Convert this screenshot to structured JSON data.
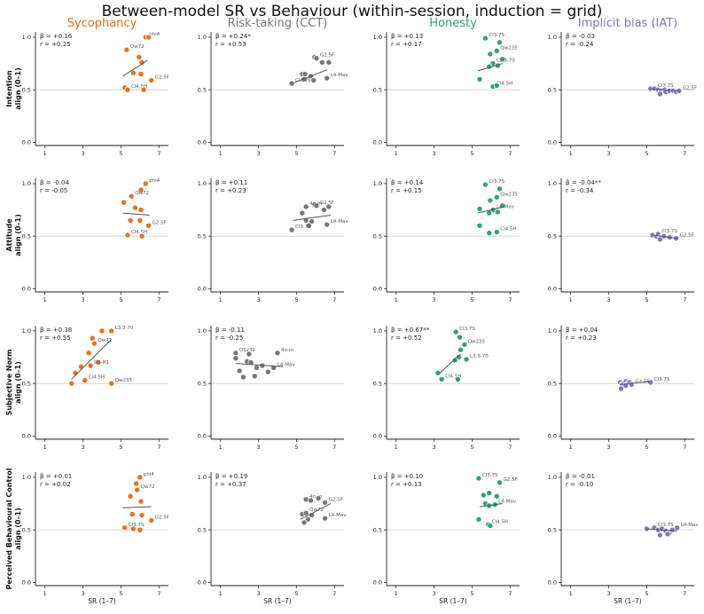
{
  "title": "Between-model SR vs Behaviour (within-session, induction = grid)",
  "xlabel": "SR (1–7)",
  "columns": [
    {
      "name": "Sycophancy",
      "color": "#E8711C"
    },
    {
      "name": "Risk-taking (CCT)",
      "color": "#777777"
    },
    {
      "name": "Honesty",
      "color": "#2BA37A"
    },
    {
      "name": "Implicit bias (IAT)",
      "color": "#7F78BE"
    }
  ],
  "rows": [
    {
      "ylabel_line1": "Intention",
      "ylabel_line2": "align (0–1)"
    },
    {
      "ylabel_line1": "Attitude",
      "ylabel_line2": "align (0–1)"
    },
    {
      "ylabel_line1": "Subjective Norm",
      "ylabel_line2": "align (0–1)"
    },
    {
      "ylabel_line1": "Perceived Behavioural Control",
      "ylabel_line2": "align (0–1)"
    }
  ],
  "chart_data": {
    "type": "scatter",
    "xlim": [
      0.5,
      7.5
    ],
    "ylim": [
      -0.03,
      1.05
    ],
    "x_ticks": [
      1,
      3,
      5,
      7
    ],
    "y_ticks": [
      "0.0",
      "0.5",
      "1.0"
    ],
    "reference_line_y": 0.5,
    "panels": [
      {
        "row": 0,
        "col": 0,
        "beta": "β = +0.16",
        "r": "r = +0.25",
        "fit": [
          [
            5.1,
            0.63
          ],
          [
            6.4,
            0.78
          ]
        ],
        "points": [
          [
            6.3,
            1.0,
            "phi4"
          ],
          [
            6.45,
            1.0,
            ""
          ],
          [
            5.3,
            0.88,
            "Qw72"
          ],
          [
            5.95,
            0.81,
            ""
          ],
          [
            6.1,
            0.76,
            ""
          ],
          [
            5.65,
            0.66,
            ""
          ],
          [
            6.05,
            0.65,
            ""
          ],
          [
            6.6,
            0.59,
            "G2.5F"
          ],
          [
            5.2,
            0.52,
            ""
          ],
          [
            5.35,
            0.5,
            "Cl4.5H"
          ],
          [
            6.2,
            0.5,
            ""
          ]
        ]
      },
      {
        "row": 0,
        "col": 1,
        "beta": "β = +0.24*",
        "r": "r = +0.53",
        "fit": [
          [
            4.9,
            0.57
          ],
          [
            6.6,
            0.69
          ]
        ],
        "points": [
          [
            5.95,
            0.81,
            ""
          ],
          [
            6.05,
            0.8,
            "G2.5F"
          ],
          [
            6.35,
            0.76,
            ""
          ],
          [
            6.7,
            0.76,
            ""
          ],
          [
            5.3,
            0.65,
            ""
          ],
          [
            5.45,
            0.65,
            ""
          ],
          [
            5.75,
            0.63,
            ""
          ],
          [
            6.6,
            0.61,
            "L4-Mav"
          ],
          [
            5.4,
            0.6,
            ""
          ],
          [
            5.9,
            0.59,
            ""
          ],
          [
            4.75,
            0.56,
            "Cl3.7S"
          ]
        ]
      },
      {
        "row": 0,
        "col": 2,
        "beta": "β = +0.13",
        "r": "r = +0.17",
        "fit": [
          [
            5.3,
            0.68
          ],
          [
            6.6,
            0.75
          ]
        ],
        "points": [
          [
            5.7,
            0.99,
            "Cl3.7S"
          ],
          [
            6.45,
            0.95,
            ""
          ],
          [
            6.3,
            0.87,
            "Qw235"
          ],
          [
            5.95,
            0.84,
            ""
          ],
          [
            6.6,
            0.79,
            ""
          ],
          [
            6.1,
            0.75,
            "L3.3-70"
          ],
          [
            6.35,
            0.73,
            ""
          ],
          [
            5.9,
            0.72,
            ""
          ],
          [
            5.4,
            0.6,
            ""
          ],
          [
            6.1,
            0.53,
            "Cl4.5H"
          ],
          [
            6.3,
            0.54,
            ""
          ]
        ]
      },
      {
        "row": 0,
        "col": 3,
        "beta": "β = -0.03",
        "r": "r = -0.24",
        "fit": [
          [
            5.2,
            0.51
          ],
          [
            6.7,
            0.49
          ]
        ],
        "points": [
          [
            5.2,
            0.51,
            ""
          ],
          [
            5.4,
            0.51,
            "Cl3.7S"
          ],
          [
            5.6,
            0.5,
            ""
          ],
          [
            5.75,
            0.49,
            ""
          ],
          [
            5.95,
            0.5,
            ""
          ],
          [
            5.7,
            0.46,
            ""
          ],
          [
            6.0,
            0.48,
            ""
          ],
          [
            6.2,
            0.49,
            ""
          ],
          [
            6.4,
            0.49,
            ""
          ],
          [
            6.55,
            0.48,
            ""
          ],
          [
            6.7,
            0.49,
            "G2.5F"
          ]
        ]
      },
      {
        "row": 1,
        "col": 0,
        "beta": "β = -0.04",
        "r": "r = -0.05",
        "fit": [
          [
            5.1,
            0.72
          ],
          [
            6.5,
            0.7
          ]
        ],
        "points": [
          [
            6.3,
            1.0,
            "phi4"
          ],
          [
            6.05,
            0.94,
            ""
          ],
          [
            5.55,
            0.88,
            "Qw72"
          ],
          [
            5.15,
            0.82,
            ""
          ],
          [
            5.75,
            0.77,
            ""
          ],
          [
            6.05,
            0.75,
            ""
          ],
          [
            5.5,
            0.65,
            ""
          ],
          [
            6.0,
            0.65,
            ""
          ],
          [
            6.45,
            0.6,
            "G2.5F"
          ],
          [
            5.35,
            0.51,
            "Cl4.5H"
          ],
          [
            6.1,
            0.5,
            ""
          ]
        ]
      },
      {
        "row": 1,
        "col": 1,
        "beta": "β = +0.11",
        "r": "r = +0.23",
        "fit": [
          [
            4.8,
            0.65
          ],
          [
            6.8,
            0.7
          ]
        ],
        "points": [
          [
            5.95,
            0.8,
            ""
          ],
          [
            6.05,
            0.79,
            "G2.5F"
          ],
          [
            5.5,
            0.78,
            "4o-m"
          ],
          [
            6.45,
            0.75,
            ""
          ],
          [
            6.7,
            0.78,
            ""
          ],
          [
            5.3,
            0.72,
            ""
          ],
          [
            5.5,
            0.65,
            ""
          ],
          [
            5.8,
            0.64,
            ""
          ],
          [
            6.6,
            0.61,
            "L4-Mav"
          ],
          [
            5.65,
            0.6,
            ""
          ],
          [
            4.75,
            0.56,
            "Cl3.7S"
          ]
        ]
      },
      {
        "row": 1,
        "col": 2,
        "beta": "β = +0.14",
        "r": "r = +0.15",
        "fit": [
          [
            5.3,
            0.72
          ],
          [
            6.7,
            0.78
          ]
        ],
        "points": [
          [
            5.7,
            0.99,
            "Cl3.7S"
          ],
          [
            6.45,
            0.95,
            ""
          ],
          [
            6.3,
            0.87,
            "Qw235"
          ],
          [
            5.95,
            0.84,
            ""
          ],
          [
            6.6,
            0.79,
            ""
          ],
          [
            5.4,
            0.76,
            ""
          ],
          [
            6.1,
            0.75,
            "L4-Mav"
          ],
          [
            6.35,
            0.73,
            ""
          ],
          [
            5.9,
            0.72,
            ""
          ],
          [
            5.4,
            0.6,
            ""
          ],
          [
            5.9,
            0.53,
            ""
          ],
          [
            6.3,
            0.54,
            "Cl4.5H"
          ]
        ]
      },
      {
        "row": 1,
        "col": 3,
        "beta": "β = -0.04**",
        "r": "r = -0.34",
        "fit": [
          [
            5.3,
            0.51
          ],
          [
            6.6,
            0.48
          ]
        ],
        "points": [
          [
            5.3,
            0.51,
            ""
          ],
          [
            5.5,
            0.5,
            ""
          ],
          [
            5.6,
            0.52,
            "Cl3.7S"
          ],
          [
            5.75,
            0.49,
            ""
          ],
          [
            5.95,
            0.5,
            ""
          ],
          [
            5.7,
            0.47,
            ""
          ],
          [
            5.9,
            0.5,
            ""
          ],
          [
            6.2,
            0.49,
            ""
          ],
          [
            6.55,
            0.48,
            "G2.5F"
          ]
        ]
      },
      {
        "row": 2,
        "col": 0,
        "beta": "β = +0.38",
        "r": "r = +0.55",
        "fit": [
          [
            2.4,
            0.54
          ],
          [
            4.5,
            0.92
          ]
        ],
        "points": [
          [
            4.0,
            1.0,
            ""
          ],
          [
            4.5,
            1.0,
            "L3.3-70"
          ],
          [
            3.5,
            0.93,
            ""
          ],
          [
            3.6,
            0.88,
            "Qw72"
          ],
          [
            3.3,
            0.79,
            ""
          ],
          [
            3.8,
            0.7,
            ""
          ],
          [
            2.9,
            0.66,
            ""
          ],
          [
            3.4,
            0.67,
            "DS-R1"
          ],
          [
            2.6,
            0.6,
            ""
          ],
          [
            3.1,
            0.53,
            "Cl4.5H"
          ],
          [
            2.4,
            0.5,
            ""
          ],
          [
            4.5,
            0.5,
            "Qw235"
          ]
        ]
      },
      {
        "row": 2,
        "col": 1,
        "beta": "β = -0.11",
        "r": "r = -0.25",
        "fit": [
          [
            1.8,
            0.69
          ],
          [
            4.3,
            0.66
          ]
        ],
        "points": [
          [
            1.8,
            0.79,
            "DSv31"
          ],
          [
            2.5,
            0.78,
            ""
          ],
          [
            4.0,
            0.79,
            "4o-m"
          ],
          [
            1.8,
            0.74,
            ""
          ],
          [
            2.4,
            0.71,
            ""
          ],
          [
            2.6,
            0.7,
            ""
          ],
          [
            3.2,
            0.67,
            ""
          ],
          [
            2.9,
            0.65,
            ""
          ],
          [
            3.8,
            0.65,
            "L4-Mav"
          ],
          [
            2.0,
            0.62,
            ""
          ],
          [
            3.5,
            0.61,
            ""
          ],
          [
            2.2,
            0.56,
            ""
          ],
          [
            2.8,
            0.57,
            ""
          ]
        ]
      },
      {
        "row": 2,
        "col": 2,
        "beta": "β = +0.67**",
        "r": "r = +0.52",
        "fit": [
          [
            3.3,
            0.6
          ],
          [
            4.4,
            0.78
          ]
        ],
        "points": [
          [
            4.15,
            0.99,
            "Cl3.7S"
          ],
          [
            4.35,
            0.94,
            ""
          ],
          [
            4.6,
            0.87,
            "Qw235"
          ],
          [
            4.4,
            0.82,
            ""
          ],
          [
            4.7,
            0.73,
            "L3.3-70"
          ],
          [
            4.3,
            0.75,
            ""
          ],
          [
            4.1,
            0.72,
            ""
          ],
          [
            3.2,
            0.6,
            ""
          ],
          [
            3.4,
            0.54,
            "Cl4.5H"
          ],
          [
            4.25,
            0.54,
            ""
          ]
        ]
      },
      {
        "row": 2,
        "col": 3,
        "beta": "β = +0.04",
        "r": "r = +0.23",
        "fit": [
          [
            3.6,
            0.49
          ],
          [
            5.2,
            0.52
          ]
        ],
        "points": [
          [
            5.2,
            0.51,
            "Cl3.7S"
          ],
          [
            3.6,
            0.51,
            ""
          ],
          [
            3.7,
            0.49,
            ""
          ],
          [
            3.8,
            0.5,
            ""
          ],
          [
            3.9,
            0.52,
            ""
          ],
          [
            4.0,
            0.5,
            ""
          ],
          [
            4.1,
            0.51,
            ""
          ],
          [
            3.75,
            0.47,
            ""
          ],
          [
            3.9,
            0.48,
            ""
          ],
          [
            4.2,
            0.49,
            "G2.5F"
          ],
          [
            3.65,
            0.45,
            ""
          ]
        ]
      },
      {
        "row": 3,
        "col": 0,
        "beta": "β = +0.01",
        "r": "r = +0.02",
        "fit": [
          [
            5.1,
            0.71
          ],
          [
            6.6,
            0.72
          ]
        ],
        "points": [
          [
            6.0,
            1.0,
            "phi4"
          ],
          [
            5.8,
            0.94,
            ""
          ],
          [
            5.85,
            0.88,
            "Qw72"
          ],
          [
            5.5,
            0.82,
            ""
          ],
          [
            6.05,
            0.77,
            ""
          ],
          [
            5.6,
            0.65,
            ""
          ],
          [
            6.1,
            0.64,
            ""
          ],
          [
            6.6,
            0.59,
            "G2.5F"
          ],
          [
            5.2,
            0.52,
            "Cl3.7S"
          ],
          [
            5.65,
            0.51,
            ""
          ],
          [
            6.0,
            0.5,
            ""
          ]
        ]
      },
      {
        "row": 3,
        "col": 1,
        "beta": "β = +0.19",
        "r": "r = +0.37",
        "fit": [
          [
            5.2,
            0.6
          ],
          [
            6.8,
            0.75
          ]
        ],
        "points": [
          [
            5.5,
            0.79,
            "4o-m"
          ],
          [
            6.15,
            0.8,
            ""
          ],
          [
            6.5,
            0.76,
            "G2.5F"
          ],
          [
            5.75,
            0.78,
            ""
          ],
          [
            5.3,
            0.65,
            ""
          ],
          [
            5.5,
            0.66,
            "Qw72"
          ],
          [
            5.8,
            0.64,
            ""
          ],
          [
            5.6,
            0.6,
            ""
          ],
          [
            5.4,
            0.57,
            ""
          ],
          [
            6.5,
            0.61,
            "L4-Mav"
          ]
        ]
      },
      {
        "row": 3,
        "col": 2,
        "beta": "β = +0.10",
        "r": "r = +0.13",
        "fit": [
          [
            5.4,
            0.72
          ],
          [
            6.6,
            0.75
          ]
        ],
        "points": [
          [
            5.35,
            0.99,
            "Cl3.7S"
          ],
          [
            6.45,
            0.95,
            "G2.5F"
          ],
          [
            5.9,
            0.85,
            ""
          ],
          [
            5.6,
            0.83,
            ""
          ],
          [
            6.3,
            0.82,
            ""
          ],
          [
            5.7,
            0.75,
            ""
          ],
          [
            6.2,
            0.74,
            "L4-Mav"
          ],
          [
            5.9,
            0.73,
            ""
          ],
          [
            5.35,
            0.6,
            ""
          ],
          [
            5.85,
            0.55,
            "Cl4.5H"
          ],
          [
            5.95,
            0.54,
            ""
          ]
        ]
      },
      {
        "row": 3,
        "col": 3,
        "beta": "β = -0.01",
        "r": "r = -0.10",
        "fit": [
          [
            5.0,
            0.51
          ],
          [
            6.6,
            0.49
          ]
        ],
        "points": [
          [
            5.0,
            0.51,
            ""
          ],
          [
            5.4,
            0.52,
            "Cl3.7S"
          ],
          [
            5.6,
            0.5,
            ""
          ],
          [
            5.8,
            0.51,
            ""
          ],
          [
            6.0,
            0.49,
            ""
          ],
          [
            6.2,
            0.47,
            ""
          ],
          [
            6.35,
            0.5,
            ""
          ],
          [
            6.6,
            0.52,
            "L4-Mav"
          ],
          [
            5.7,
            0.45,
            ""
          ],
          [
            6.1,
            0.46,
            ""
          ]
        ]
      }
    ]
  }
}
